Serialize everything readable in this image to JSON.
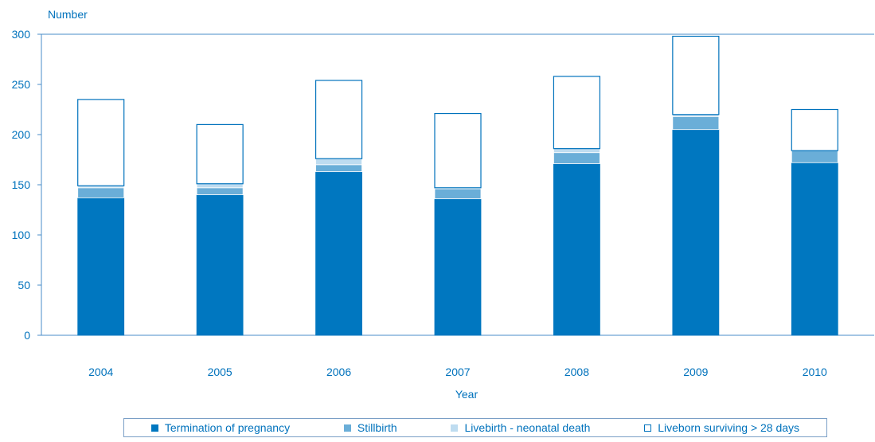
{
  "chart_data": {
    "type": "bar",
    "stacked": true,
    "ylabel": "Number",
    "xlabel": "Year",
    "ylim": [
      0,
      300
    ],
    "yticks": [
      0,
      50,
      100,
      150,
      200,
      250,
      300
    ],
    "categories": [
      "2004",
      "2005",
      "2006",
      "2007",
      "2008",
      "2009",
      "2010"
    ],
    "series": [
      {
        "name": "Termination of pregnancy",
        "color": "#0077c0",
        "values": [
          137,
          140,
          163,
          136,
          171,
          205,
          172
        ]
      },
      {
        "name": "Stillbirth",
        "color": "#6aaed8",
        "values": [
          10,
          7,
          7,
          10,
          11,
          13,
          12
        ]
      },
      {
        "name": "Livebirth - neonatal death",
        "color": "#bedcf0",
        "values": [
          2,
          4,
          6,
          1,
          4,
          2,
          0
        ]
      },
      {
        "name": "Liveborn surviving > 28 days",
        "color": "#ffffff",
        "values": [
          86,
          59,
          78,
          74,
          72,
          78,
          41
        ]
      }
    ],
    "grid": false,
    "legend": "bottom"
  }
}
